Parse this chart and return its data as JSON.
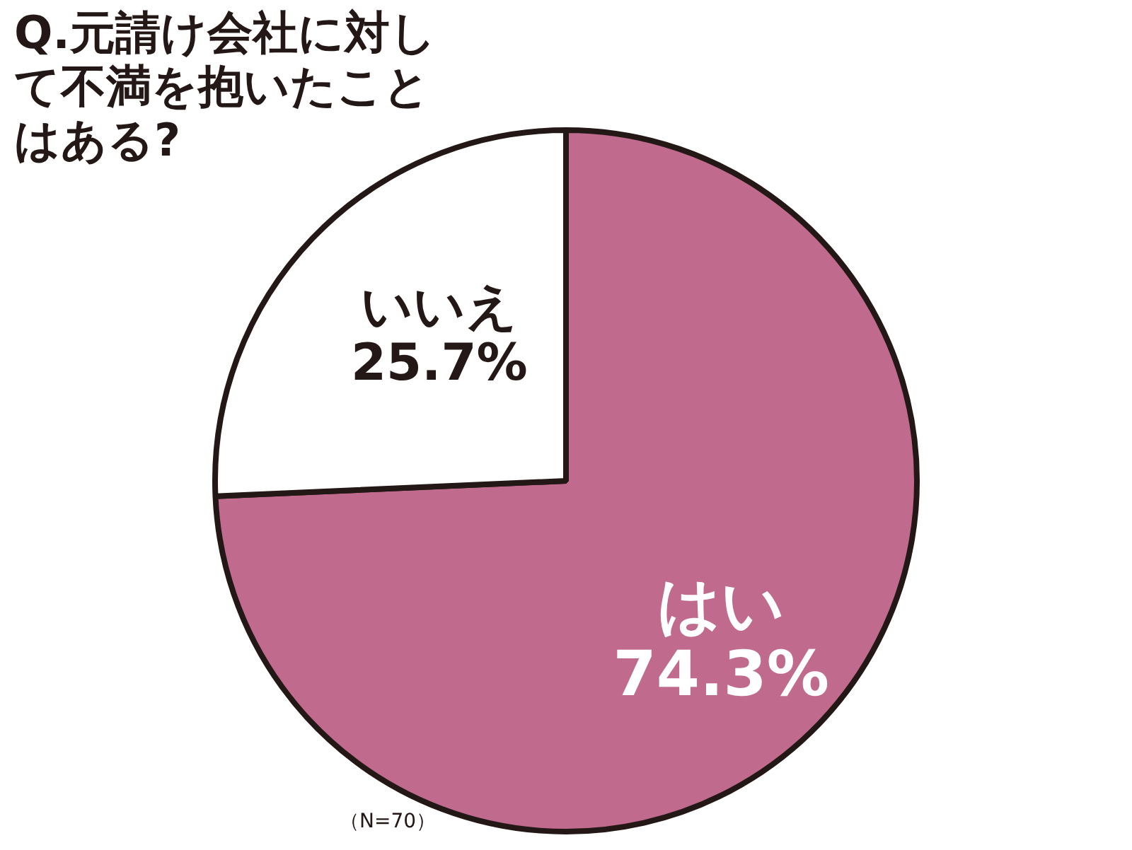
{
  "chart_data": {
    "type": "pie",
    "title": "Q.元請け会社に対して不満を抱いたことはある?",
    "categories": [
      "はい",
      "いいえ"
    ],
    "values": [
      74.3,
      25.7
    ],
    "value_labels": [
      "74.3%",
      "25.7%"
    ],
    "colors": [
      "#c06a8e",
      "#ffffff"
    ],
    "annotations": [
      "（N=70）"
    ]
  }
}
